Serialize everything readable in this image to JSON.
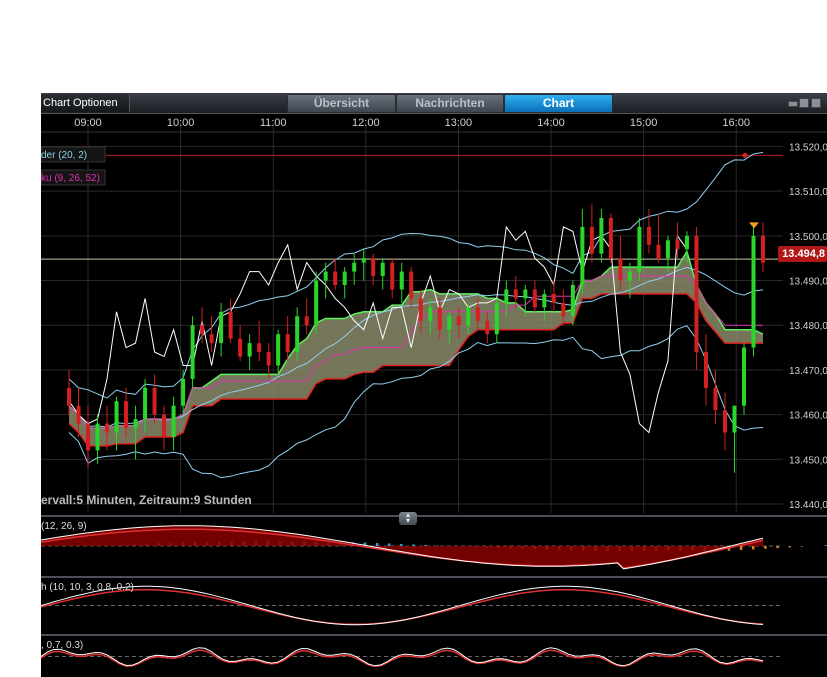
{
  "toolbar": {
    "chart_options_label": "Chart Optionen",
    "tabs": [
      {
        "label": "Übersicht",
        "active": false
      },
      {
        "label": "Nachrichten",
        "active": false
      },
      {
        "label": "Chart",
        "active": true
      }
    ],
    "window_icons": [
      "minimize-icon",
      "restore-icon",
      "maximize-icon"
    ]
  },
  "colors": {
    "background": "#000000",
    "candle_up": "#2bd62b",
    "candle_down": "#d42020",
    "bollinger": "#8fd0f0",
    "ichimoku_base": "#e030b0",
    "ichimoku_chikou": "#ffffff",
    "cloud_fill": "#8a8a6a",
    "cloud_upper": "#5ef05e",
    "cloud_lower": "#e02020",
    "active_tab": "#1a8fd8",
    "price_tag": "#b01818"
  },
  "chart_data": {
    "type": "candlestick",
    "x_ticks": [
      "09:00",
      "10:00",
      "11:00",
      "12:00",
      "13:00",
      "14:00",
      "15:00",
      "16:00"
    ],
    "y_ticks": [
      "13.520,0",
      "13.510,0",
      "13.500,0",
      "13.490,0",
      "13.480,0",
      "13.470,0",
      "13.460,0",
      "13.450,0",
      "13.440,0"
    ],
    "ylim": [
      13438,
      13523
    ],
    "last_price": 13494.8,
    "last_price_label": "13.494,8",
    "resistance_level": 13518,
    "indicators": [
      {
        "label": "der (20, 2)",
        "color": "#8fd0f0"
      },
      {
        "label": "ku (9, 26, 52)",
        "color": "#e030b0"
      }
    ],
    "interval_label": "ervall:5 Minuten, Zeitraum:9 Stunden",
    "candles": [
      [
        13466,
        13470,
        13460,
        13462
      ],
      [
        13462,
        13466,
        13455,
        13458
      ],
      [
        13458,
        13462,
        13448,
        13452
      ],
      [
        13452,
        13460,
        13449,
        13458
      ],
      [
        13458,
        13462,
        13452,
        13456
      ],
      [
        13456,
        13464,
        13452,
        13463
      ],
      [
        13463,
        13466,
        13455,
        13457
      ],
      [
        13457,
        13462,
        13450,
        13459
      ],
      [
        13459,
        13468,
        13456,
        13466
      ],
      [
        13466,
        13469,
        13458,
        13460
      ],
      [
        13460,
        13462,
        13452,
        13455
      ],
      [
        13455,
        13464,
        13452,
        13462
      ],
      [
        13462,
        13470,
        13460,
        13468
      ],
      [
        13468,
        13482,
        13466,
        13480
      ],
      [
        13480,
        13484,
        13476,
        13478
      ],
      [
        13478,
        13482,
        13474,
        13476
      ],
      [
        13476,
        13485,
        13473,
        13483
      ],
      [
        13483,
        13486,
        13476,
        13477
      ],
      [
        13477,
        13480,
        13472,
        13473
      ],
      [
        13473,
        13478,
        13470,
        13476
      ],
      [
        13476,
        13481,
        13472,
        13474
      ],
      [
        13474,
        13476,
        13468,
        13471
      ],
      [
        13471,
        13479,
        13469,
        13478
      ],
      [
        13478,
        13482,
        13472,
        13474
      ],
      [
        13474,
        13484,
        13472,
        13482
      ],
      [
        13482,
        13486,
        13478,
        13480
      ],
      [
        13480,
        13492,
        13478,
        13490
      ],
      [
        13490,
        13494,
        13486,
        13492
      ],
      [
        13492,
        13495,
        13488,
        13489
      ],
      [
        13489,
        13493,
        13486,
        13492
      ],
      [
        13492,
        13496,
        13489,
        13494
      ],
      [
        13494,
        13497,
        13490,
        13495
      ],
      [
        13495,
        13496,
        13489,
        13491
      ],
      [
        13491,
        13495,
        13488,
        13494
      ],
      [
        13494,
        13495,
        13486,
        13488
      ],
      [
        13488,
        13494,
        13485,
        13492
      ],
      [
        13492,
        13493,
        13484,
        13486
      ],
      [
        13486,
        13488,
        13478,
        13481
      ],
      [
        13481,
        13486,
        13478,
        13484
      ],
      [
        13484,
        13486,
        13477,
        13479
      ],
      [
        13479,
        13483,
        13476,
        13482
      ],
      [
        13482,
        13484,
        13477,
        13480
      ],
      [
        13480,
        13485,
        13478,
        13484
      ],
      [
        13484,
        13486,
        13479,
        13481
      ],
      [
        13481,
        13483,
        13476,
        13478
      ],
      [
        13478,
        13486,
        13476,
        13485
      ],
      [
        13485,
        13490,
        13482,
        13488
      ],
      [
        13488,
        13491,
        13484,
        13486
      ],
      [
        13486,
        13489,
        13482,
        13488
      ],
      [
        13488,
        13490,
        13483,
        13484
      ],
      [
        13484,
        13488,
        13481,
        13487
      ],
      [
        13487,
        13490,
        13483,
        13485
      ],
      [
        13485,
        13488,
        13480,
        13482
      ],
      [
        13482,
        13490,
        13480,
        13489
      ],
      [
        13489,
        13506,
        13487,
        13502
      ],
      [
        13502,
        13507,
        13494,
        13496
      ],
      [
        13496,
        13506,
        13494,
        13504
      ],
      [
        13504,
        13505,
        13494,
        13495
      ],
      [
        13495,
        13500,
        13488,
        13490
      ],
      [
        13490,
        13494,
        13486,
        13492
      ],
      [
        13492,
        13504,
        13490,
        13502
      ],
      [
        13502,
        13506,
        13496,
        13498
      ],
      [
        13498,
        13505,
        13494,
        13495
      ],
      [
        13495,
        13500,
        13492,
        13499
      ],
      [
        13499,
        13503,
        13495,
        13497
      ],
      [
        13497,
        13501,
        13494,
        13500
      ],
      [
        13500,
        13502,
        13470,
        13474
      ],
      [
        13474,
        13478,
        13462,
        13466
      ],
      [
        13466,
        13470,
        13458,
        13461
      ],
      [
        13461,
        13465,
        13452,
        13456
      ],
      [
        13456,
        13462,
        13447,
        13462
      ],
      [
        13462,
        13476,
        13460,
        13475
      ],
      [
        13475,
        13502,
        13473,
        13500
      ],
      [
        13500,
        13503,
        13492,
        13494
      ]
    ],
    "sub_panels": [
      {
        "label": "(12, 26, 9)",
        "type": "macd"
      },
      {
        "label": "h (10, 10, 3, 0.8, 0.2)",
        "type": "stochastic"
      },
      {
        "label": ", 0.7, 0.3)",
        "type": "oscillator"
      }
    ]
  }
}
